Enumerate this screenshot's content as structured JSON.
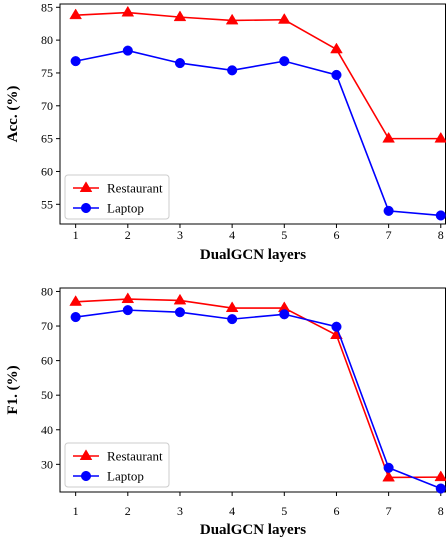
{
  "chart_data": [
    {
      "type": "line",
      "x": [
        1,
        2,
        3,
        4,
        5,
        6,
        7,
        8
      ],
      "xlabel": "DualGCN layers",
      "ylabel": "Acc. (%)",
      "xticks": [
        "1",
        "2",
        "3",
        "4",
        "5",
        "6",
        "7",
        "8"
      ],
      "yticks": [
        "55",
        "60",
        "65",
        "70",
        "75",
        "80",
        "85"
      ],
      "ylim": [
        52,
        85.5
      ],
      "xlim": [
        0.7,
        8.1
      ],
      "legend_position": "lower-left",
      "series": [
        {
          "name": "Restaurant",
          "color": "#ff0000",
          "marker": "triangle",
          "values": [
            83.8,
            84.2,
            83.5,
            83.0,
            83.1,
            78.6,
            65.0,
            65.0
          ]
        },
        {
          "name": "Laptop",
          "color": "#0000ff",
          "marker": "circle",
          "values": [
            76.8,
            78.4,
            76.5,
            75.4,
            76.8,
            74.7,
            54.0,
            53.3
          ]
        }
      ]
    },
    {
      "type": "line",
      "x": [
        1,
        2,
        3,
        4,
        5,
        6,
        7,
        8
      ],
      "xlabel": "DualGCN layers",
      "ylabel": "F1. (%)",
      "xticks": [
        "1",
        "2",
        "3",
        "4",
        "5",
        "6",
        "7",
        "8"
      ],
      "yticks": [
        "30",
        "40",
        "50",
        "60",
        "70",
        "80"
      ],
      "ylim": [
        22,
        81
      ],
      "xlim": [
        0.7,
        8.1
      ],
      "legend_position": "lower-left",
      "series": [
        {
          "name": "Restaurant",
          "color": "#ff0000",
          "marker": "triangle",
          "values": [
            77.0,
            77.8,
            77.4,
            75.2,
            75.2,
            67.4,
            26.2,
            26.3
          ]
        },
        {
          "name": "Laptop",
          "color": "#0000ff",
          "marker": "circle",
          "values": [
            72.6,
            74.6,
            74.0,
            72.0,
            73.4,
            69.8,
            29.0,
            23.0
          ]
        }
      ]
    }
  ]
}
